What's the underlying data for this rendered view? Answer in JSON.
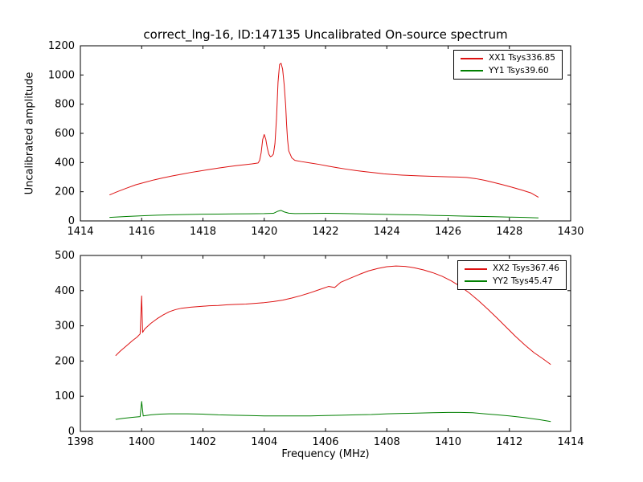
{
  "chart_data": [
    {
      "type": "line",
      "title": "correct_lng-16, ID:147135 Uncalibrated On-source spectrum",
      "xlabel": "",
      "ylabel": "Uncalibrated amplitude",
      "xlim": [
        1414,
        1430
      ],
      "ylim": [
        0,
        1200
      ],
      "xticks": [
        1414,
        1416,
        1418,
        1420,
        1422,
        1424,
        1426,
        1428,
        1430
      ],
      "yticks": [
        0,
        200,
        400,
        600,
        800,
        1000,
        1200
      ],
      "grid": false,
      "legend_position": "upper right",
      "series": [
        {
          "name": "XX1 Tsys336.85",
          "color": "#dd1111",
          "points": [
            [
              1414.95,
              178
            ],
            [
              1415.2,
              200
            ],
            [
              1415.5,
              224
            ],
            [
              1415.8,
              247
            ],
            [
              1416.1,
              264
            ],
            [
              1416.4,
              281
            ],
            [
              1416.7,
              295
            ],
            [
              1417.0,
              308
            ],
            [
              1417.3,
              320
            ],
            [
              1417.6,
              332
            ],
            [
              1417.9,
              342
            ],
            [
              1418.2,
              352
            ],
            [
              1418.5,
              362
            ],
            [
              1418.8,
              371
            ],
            [
              1419.1,
              379
            ],
            [
              1419.4,
              386
            ],
            [
              1419.6,
              391
            ],
            [
              1419.8,
              397
            ],
            [
              1419.85,
              415
            ],
            [
              1419.9,
              468
            ],
            [
              1419.95,
              558
            ],
            [
              1420.0,
              592
            ],
            [
              1420.05,
              560
            ],
            [
              1420.1,
              500
            ],
            [
              1420.15,
              457
            ],
            [
              1420.2,
              440
            ],
            [
              1420.25,
              445
            ],
            [
              1420.3,
              458
            ],
            [
              1420.35,
              530
            ],
            [
              1420.4,
              700
            ],
            [
              1420.45,
              950
            ],
            [
              1420.5,
              1072
            ],
            [
              1420.55,
              1080
            ],
            [
              1420.6,
              1040
            ],
            [
              1420.65,
              935
            ],
            [
              1420.7,
              790
            ],
            [
              1420.73,
              660
            ],
            [
              1420.76,
              560
            ],
            [
              1420.8,
              480
            ],
            [
              1420.9,
              432
            ],
            [
              1421.0,
              415
            ],
            [
              1421.2,
              407
            ],
            [
              1421.5,
              397
            ],
            [
              1421.8,
              387
            ],
            [
              1422.1,
              375
            ],
            [
              1422.4,
              364
            ],
            [
              1422.7,
              354
            ],
            [
              1423.0,
              345
            ],
            [
              1423.3,
              337
            ],
            [
              1423.6,
              330
            ],
            [
              1423.9,
              323
            ],
            [
              1424.2,
              318
            ],
            [
              1424.5,
              314
            ],
            [
              1424.8,
              311
            ],
            [
              1425.1,
              308
            ],
            [
              1425.4,
              306
            ],
            [
              1425.7,
              304
            ],
            [
              1426.0,
              302
            ],
            [
              1426.3,
              301
            ],
            [
              1426.6,
              298
            ],
            [
              1426.9,
              290
            ],
            [
              1427.2,
              278
            ],
            [
              1427.5,
              263
            ],
            [
              1427.8,
              247
            ],
            [
              1428.1,
              230
            ],
            [
              1428.4,
              212
            ],
            [
              1428.7,
              192
            ],
            [
              1428.95,
              162
            ]
          ]
        },
        {
          "name": "YY1 Tsys39.60",
          "color": "#007f00",
          "points": [
            [
              1414.95,
              24
            ],
            [
              1415.5,
              30
            ],
            [
              1416.0,
              35
            ],
            [
              1416.5,
              39
            ],
            [
              1417.0,
              42
            ],
            [
              1417.5,
              44
            ],
            [
              1418.0,
              46
            ],
            [
              1418.5,
              47
            ],
            [
              1419.0,
              48
            ],
            [
              1419.5,
              49
            ],
            [
              1420.0,
              50
            ],
            [
              1420.3,
              52
            ],
            [
              1420.45,
              67
            ],
            [
              1420.55,
              72
            ],
            [
              1420.65,
              62
            ],
            [
              1420.8,
              53
            ],
            [
              1421.0,
              50
            ],
            [
              1421.5,
              51
            ],
            [
              1422.0,
              52
            ],
            [
              1422.5,
              51
            ],
            [
              1423.0,
              49
            ],
            [
              1423.5,
              47
            ],
            [
              1424.0,
              45
            ],
            [
              1424.5,
              43
            ],
            [
              1425.0,
              41
            ],
            [
              1425.5,
              38
            ],
            [
              1426.0,
              36
            ],
            [
              1426.5,
              33
            ],
            [
              1427.0,
              31
            ],
            [
              1427.5,
              29
            ],
            [
              1428.0,
              26
            ],
            [
              1428.5,
              24
            ],
            [
              1428.95,
              21
            ]
          ]
        }
      ]
    },
    {
      "type": "line",
      "title": "",
      "xlabel": "Frequency (MHz)",
      "ylabel": "",
      "xlim": [
        1398,
        1414
      ],
      "ylim": [
        0,
        500
      ],
      "xticks": [
        1398,
        1400,
        1402,
        1404,
        1406,
        1408,
        1410,
        1412,
        1414
      ],
      "yticks": [
        0,
        100,
        200,
        300,
        400,
        500
      ],
      "grid": false,
      "legend_position": "upper right",
      "series": [
        {
          "name": "XX2 Tsys367.46",
          "color": "#dd1111",
          "points": [
            [
              1399.15,
              215
            ],
            [
              1399.3,
              228
            ],
            [
              1399.5,
              243
            ],
            [
              1399.7,
              258
            ],
            [
              1399.85,
              268
            ],
            [
              1399.95,
              277
            ],
            [
              1400.0,
              385
            ],
            [
              1400.03,
              281
            ],
            [
              1400.1,
              291
            ],
            [
              1400.3,
              307
            ],
            [
              1400.5,
              320
            ],
            [
              1400.7,
              331
            ],
            [
              1400.9,
              340
            ],
            [
              1401.1,
              346
            ],
            [
              1401.3,
              350
            ],
            [
              1401.6,
              353
            ],
            [
              1401.9,
              355
            ],
            [
              1402.2,
              357
            ],
            [
              1402.5,
              358
            ],
            [
              1402.8,
              360
            ],
            [
              1403.1,
              361
            ],
            [
              1403.4,
              362
            ],
            [
              1403.7,
              364
            ],
            [
              1404.0,
              366
            ],
            [
              1404.3,
              369
            ],
            [
              1404.6,
              373
            ],
            [
              1404.9,
              379
            ],
            [
              1405.2,
              386
            ],
            [
              1405.5,
              394
            ],
            [
              1405.8,
              403
            ],
            [
              1406.1,
              412
            ],
            [
              1406.3,
              409
            ],
            [
              1406.5,
              424
            ],
            [
              1406.8,
              435
            ],
            [
              1407.1,
              446
            ],
            [
              1407.4,
              456
            ],
            [
              1407.7,
              463
            ],
            [
              1408.0,
              468
            ],
            [
              1408.3,
              470
            ],
            [
              1408.6,
              469
            ],
            [
              1408.9,
              465
            ],
            [
              1409.2,
              459
            ],
            [
              1409.5,
              451
            ],
            [
              1409.8,
              441
            ],
            [
              1410.1,
              428
            ],
            [
              1410.4,
              412
            ],
            [
              1410.7,
              393
            ],
            [
              1411.0,
              371
            ],
            [
              1411.3,
              347
            ],
            [
              1411.6,
              322
            ],
            [
              1411.9,
              296
            ],
            [
              1412.2,
              270
            ],
            [
              1412.5,
              246
            ],
            [
              1412.8,
              224
            ],
            [
              1413.1,
              206
            ],
            [
              1413.35,
              190
            ]
          ]
        },
        {
          "name": "YY2 Tsys45.47",
          "color": "#007f00",
          "points": [
            [
              1399.15,
              34
            ],
            [
              1399.4,
              37
            ],
            [
              1399.7,
              40
            ],
            [
              1399.95,
              42
            ],
            [
              1400.0,
              85
            ],
            [
              1400.05,
              44
            ],
            [
              1400.3,
              47
            ],
            [
              1400.6,
              49
            ],
            [
              1400.9,
              50
            ],
            [
              1401.2,
              50
            ],
            [
              1401.5,
              50
            ],
            [
              1402.0,
              49
            ],
            [
              1402.5,
              47
            ],
            [
              1403.0,
              46
            ],
            [
              1403.5,
              45
            ],
            [
              1404.0,
              44
            ],
            [
              1404.5,
              44
            ],
            [
              1405.0,
              44
            ],
            [
              1405.5,
              44
            ],
            [
              1406.0,
              45
            ],
            [
              1406.5,
              46
            ],
            [
              1407.0,
              47
            ],
            [
              1407.5,
              48
            ],
            [
              1408.0,
              50
            ],
            [
              1408.5,
              51
            ],
            [
              1409.0,
              52
            ],
            [
              1409.5,
              53
            ],
            [
              1410.0,
              54
            ],
            [
              1410.4,
              54
            ],
            [
              1410.8,
              53
            ],
            [
              1411.2,
              50
            ],
            [
              1411.6,
              47
            ],
            [
              1412.0,
              44
            ],
            [
              1412.5,
              39
            ],
            [
              1413.0,
              33
            ],
            [
              1413.35,
              28
            ]
          ]
        }
      ]
    }
  ]
}
